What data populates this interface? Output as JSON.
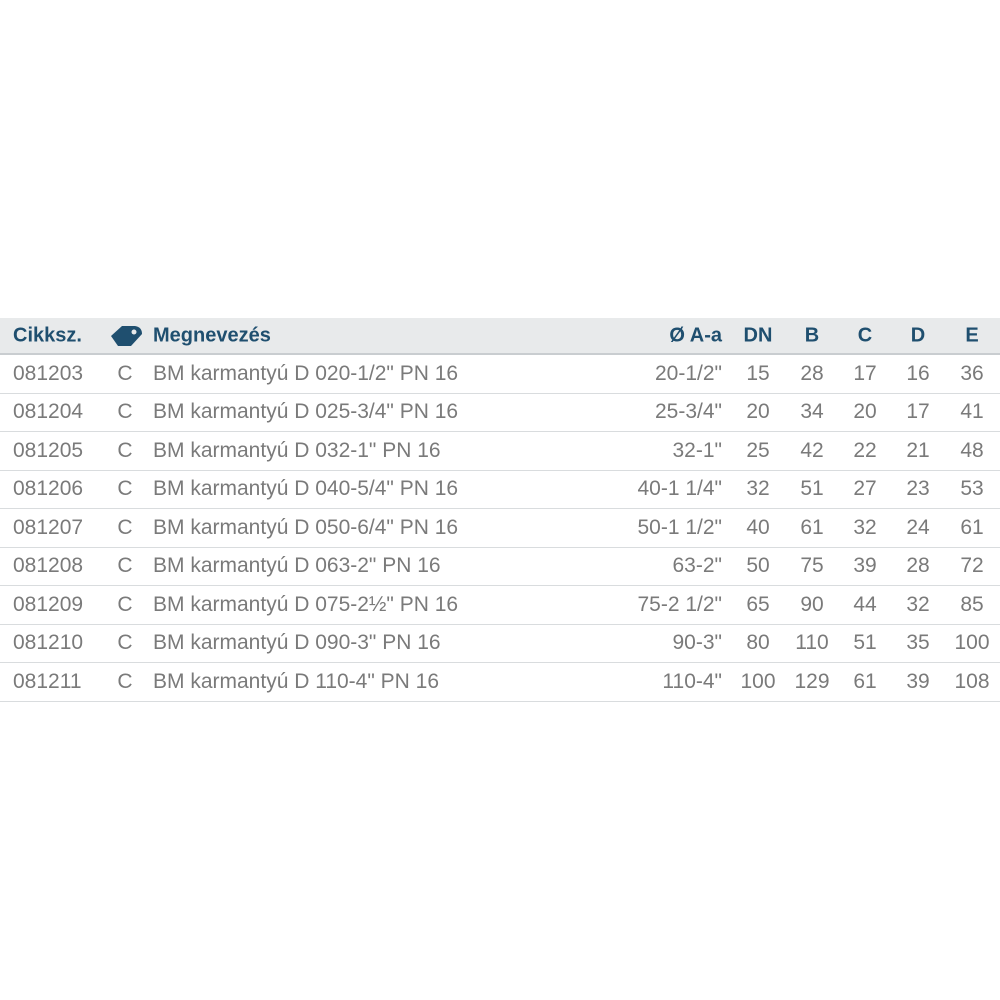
{
  "header": {
    "code": "Cikkszám",
    "code_label": "Cikksz.",
    "class_icon": "price-tag-icon",
    "name": "Megnevezés",
    "aa": "Ø A-a",
    "dn": "DN",
    "b": "B",
    "c": "C",
    "d": "D",
    "e": "E"
  },
  "rows": [
    {
      "code": "081203",
      "cls": "C",
      "name": "BM karmantyú D 020-1/2\" PN 16",
      "aa": "20-1/2\"",
      "dn": "15",
      "b": "28",
      "c": "17",
      "d": "16",
      "e": "36"
    },
    {
      "code": "081204",
      "cls": "C",
      "name": "BM karmantyú D 025-3/4\" PN 16",
      "aa": "25-3/4\"",
      "dn": "20",
      "b": "34",
      "c": "20",
      "d": "17",
      "e": "41"
    },
    {
      "code": "081205",
      "cls": "C",
      "name": "BM karmantyú D 032-1\" PN 16",
      "aa": "32-1\"",
      "dn": "25",
      "b": "42",
      "c": "22",
      "d": "21",
      "e": "48"
    },
    {
      "code": "081206",
      "cls": "C",
      "name": "BM karmantyú D 040-5/4\" PN 16",
      "aa": "40-1 1/4\"",
      "dn": "32",
      "b": "51",
      "c": "27",
      "d": "23",
      "e": "53"
    },
    {
      "code": "081207",
      "cls": "C",
      "name": "BM karmantyú D 050-6/4\" PN 16",
      "aa": "50-1 1/2\"",
      "dn": "40",
      "b": "61",
      "c": "32",
      "d": "24",
      "e": "61"
    },
    {
      "code": "081208",
      "cls": "C",
      "name": "BM karmantyú D 063-2\" PN 16",
      "aa": "63-2\"",
      "dn": "50",
      "b": "75",
      "c": "39",
      "d": "28",
      "e": "72"
    },
    {
      "code": "081209",
      "cls": "C",
      "name": "BM karmantyú D 075-2½\" PN 16",
      "aa": "75-2 1/2\"",
      "dn": "65",
      "b": "90",
      "c": "44",
      "d": "32",
      "e": "85"
    },
    {
      "code": "081210",
      "cls": "C",
      "name": "BM karmantyú D 090-3\" PN 16",
      "aa": "90-3\"",
      "dn": "80",
      "b": "110",
      "c": "51",
      "d": "35",
      "e": "100"
    },
    {
      "code": "081211",
      "cls": "C",
      "name": "BM karmantyú D 110-4\" PN 16",
      "aa": "110-4\"",
      "dn": "100",
      "b": "129",
      "c": "61",
      "d": "39",
      "e": "108"
    }
  ]
}
